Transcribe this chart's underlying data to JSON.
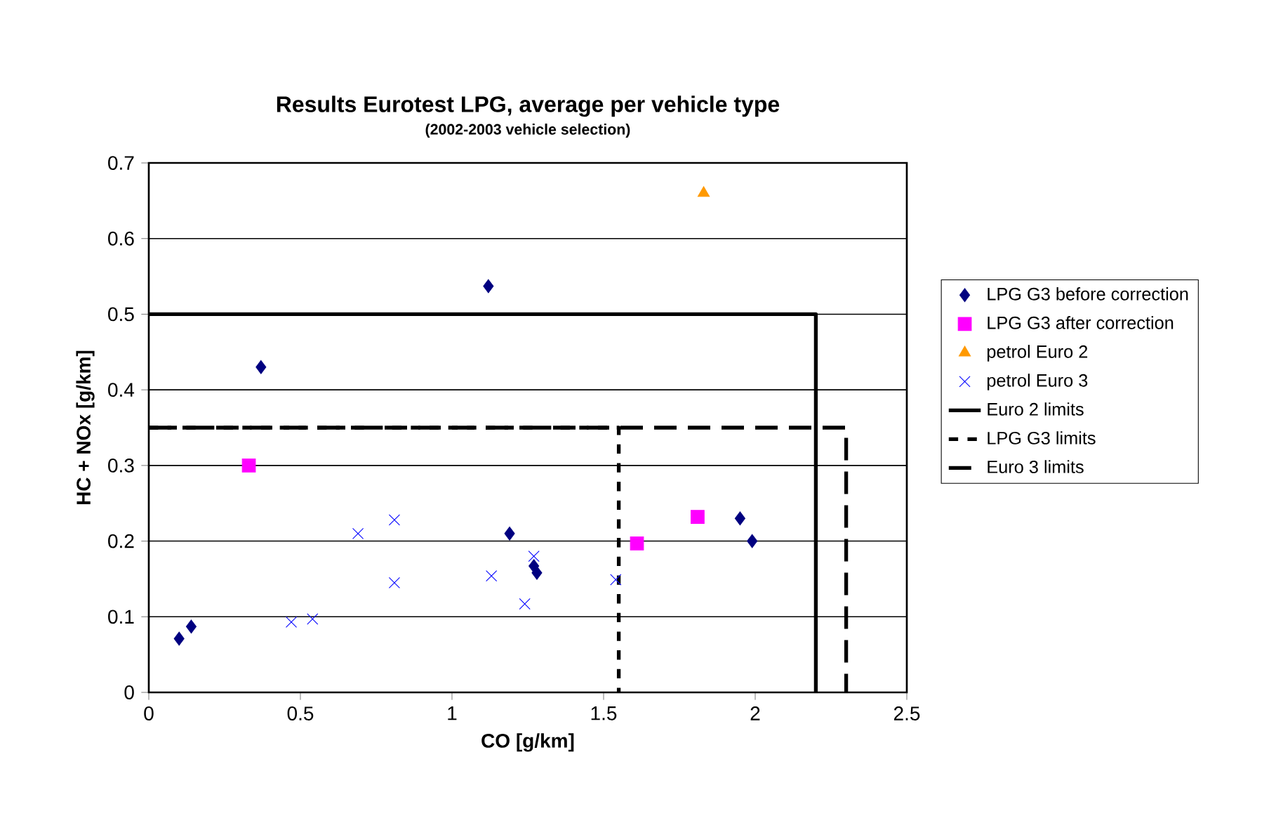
{
  "chart_data": {
    "type": "scatter",
    "title": "Results Eurotest LPG, average per vehicle type",
    "subtitle": "(2002-2003 vehicle selection)",
    "xlabel": "CO [g/km]",
    "ylabel": "HC + NOx [g/km]",
    "xlim": [
      0,
      2.5
    ],
    "xticks": [
      0,
      0.5,
      1,
      1.5,
      2,
      2.5
    ],
    "ylim": [
      0,
      0.7
    ],
    "yticks": [
      0,
      0.1,
      0.2,
      0.3,
      0.4,
      0.5,
      0.6,
      0.7
    ],
    "grid": "y",
    "legend": "right",
    "series": [
      {
        "name": "LPG G3 before correction",
        "color": "#000080",
        "marker": "diamond",
        "x": [
          0.1,
          0.14,
          0.37,
          1.12,
          1.19,
          1.27,
          1.28,
          1.95,
          1.99
        ],
        "values": [
          0.071,
          0.087,
          0.43,
          0.537,
          0.21,
          0.167,
          0.158,
          0.23,
          0.2
        ]
      },
      {
        "name": "LPG G3 after correction",
        "color": "#ff00ff",
        "marker": "square",
        "x": [
          0.33,
          1.61,
          1.81
        ],
        "values": [
          0.3,
          0.197,
          0.232
        ]
      },
      {
        "name": "petrol Euro 2",
        "color": "#ff9900",
        "marker": "triangle",
        "x": [
          1.83
        ],
        "values": [
          0.66
        ]
      },
      {
        "name": "petrol Euro 3",
        "color": "#0000ff",
        "marker": "cross",
        "x": [
          0.47,
          0.54,
          0.69,
          0.81,
          0.81,
          1.13,
          1.24,
          1.27,
          1.54
        ],
        "values": [
          0.093,
          0.097,
          0.21,
          0.228,
          0.145,
          0.154,
          0.117,
          0.18,
          0.149
        ]
      },
      {
        "name": "Euro 2 limits",
        "type": "line",
        "color": "#000000",
        "line_style": "solid",
        "x": [
          0,
          2.2,
          2.2
        ],
        "values": [
          0.5,
          0.5,
          0
        ]
      },
      {
        "name": "LPG G3 limits",
        "type": "line",
        "color": "#000000",
        "line_style": "dotted",
        "x": [
          0,
          1.55,
          1.55
        ],
        "values": [
          0.35,
          0.35,
          0
        ]
      },
      {
        "name": "Euro 3 limits",
        "type": "line",
        "color": "#000000",
        "line_style": "dashed",
        "x": [
          0,
          2.3,
          2.3
        ],
        "values": [
          0.35,
          0.35,
          0
        ]
      }
    ]
  }
}
